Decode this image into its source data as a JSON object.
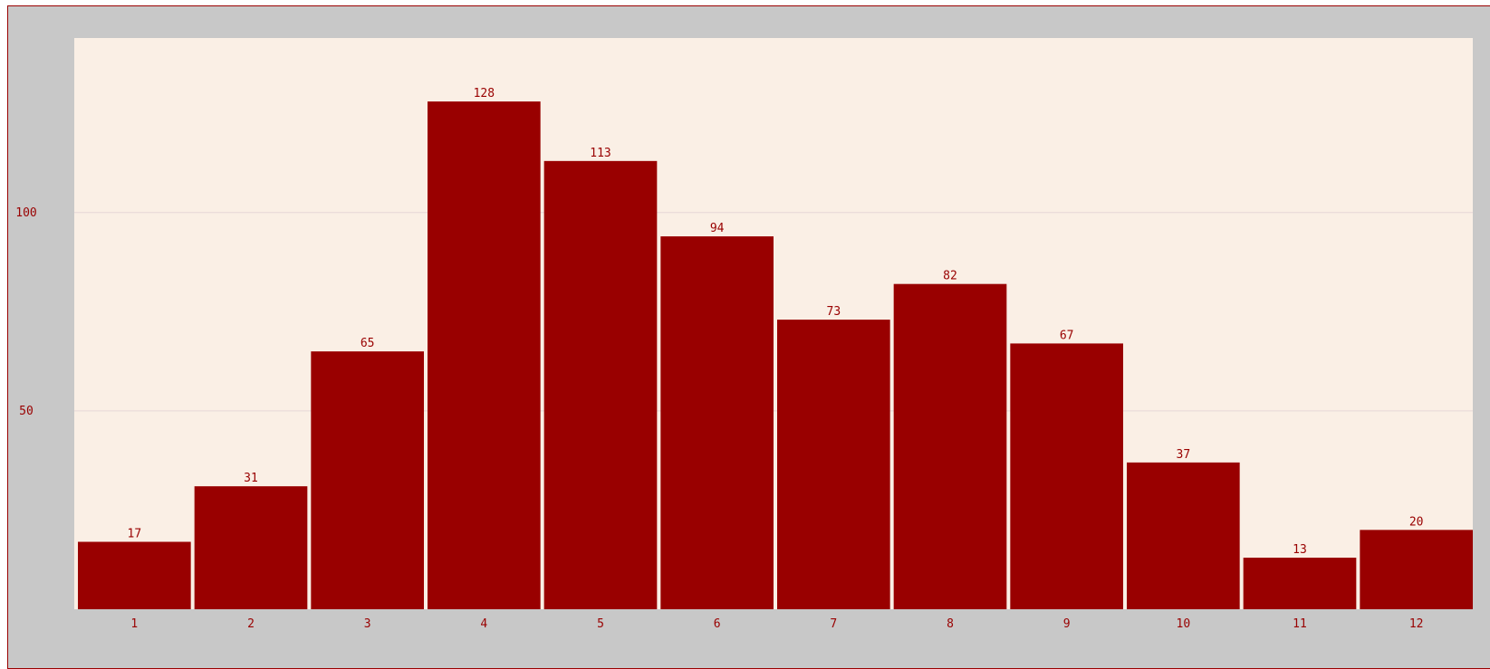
{
  "chart_data": {
    "type": "bar",
    "categories": [
      "1",
      "2",
      "3",
      "4",
      "5",
      "6",
      "7",
      "8",
      "9",
      "10",
      "11",
      "12"
    ],
    "values": [
      17,
      31,
      65,
      128,
      113,
      94,
      73,
      82,
      67,
      37,
      13,
      20
    ],
    "title": "",
    "xlabel": "",
    "ylabel": "",
    "ylim": [
      0,
      144
    ],
    "yticks": [
      50,
      100
    ],
    "grid": true,
    "data_labels": true
  },
  "colors": {
    "bar": "#990000",
    "plot_background": "#faefe5",
    "frame_background": "#c8c8c8",
    "gridline": "#e6d6d6",
    "text": "#990000"
  }
}
